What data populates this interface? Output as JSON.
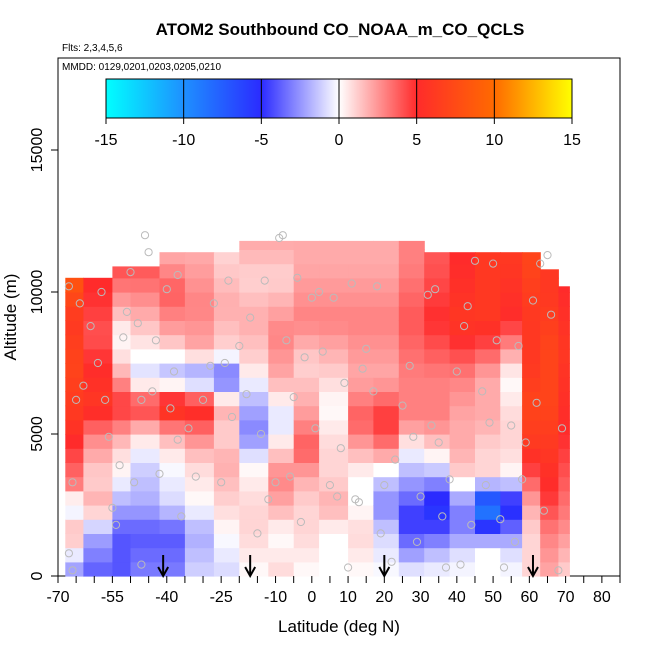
{
  "chart_data": {
    "type": "heatmap",
    "title": "ATOM2 Southbound CO_NOAA_m_CO_QCLS",
    "subtitle": "Flts: 2,3,4,5,6",
    "annotation": "MMDD: 0129,0201,0203,0205,0210",
    "xlabel": "Latitude (deg N)",
    "ylabel": "Altitude (m)",
    "xlim": [
      -70,
      85
    ],
    "ylim": [
      0,
      17500
    ],
    "x_ticks": [
      -70,
      -55,
      -40,
      -25,
      -10,
      0,
      10,
      20,
      30,
      40,
      50,
      60,
      70,
      80
    ],
    "x_minor_ticks": [
      -65,
      -60,
      -50,
      -45,
      -35,
      -30,
      -20,
      -15,
      -5,
      5,
      15,
      25,
      35,
      45,
      55,
      65,
      75,
      85
    ],
    "y_ticks": [
      0,
      5000,
      10000,
      15000
    ],
    "colorbar": {
      "range": [
        -15,
        15
      ],
      "ticks": [
        -15,
        -10,
        -5,
        0,
        5,
        10,
        15
      ],
      "colors": {
        "-15": "#00ffff",
        "-10": "#1e90ff",
        "-5": "#2b2bff",
        "0": "#ffffff",
        "5": "#ff2b2b",
        "10": "#ff6a00",
        "15": "#ffff00"
      }
    },
    "arrows_latitude": [
      -41,
      -17,
      20,
      61
    ],
    "profiles": [
      {
        "x0": -68,
        "x1": -63,
        "top": 10500,
        "values": [
          [
            0,
            -3
          ],
          [
            1500,
            2
          ],
          [
            2500,
            -1
          ],
          [
            3200,
            3
          ],
          [
            5500,
            6
          ],
          [
            7500,
            7
          ],
          [
            9000,
            6
          ],
          [
            10200,
            8
          ]
        ]
      },
      {
        "x0": -63,
        "x1": -55,
        "top": 10500,
        "values": [
          [
            0,
            -4
          ],
          [
            1500,
            -2
          ],
          [
            2500,
            2
          ],
          [
            3500,
            1
          ],
          [
            5000,
            3
          ],
          [
            6000,
            6
          ],
          [
            7500,
            5
          ],
          [
            8500,
            4
          ],
          [
            10000,
            5
          ]
        ]
      },
      {
        "x0": -55,
        "x1": -50,
        "top": 10900,
        "values": [
          [
            0,
            -4
          ],
          [
            1500,
            -4
          ],
          [
            2500,
            -2
          ],
          [
            3500,
            0
          ],
          [
            4500,
            1
          ],
          [
            6000,
            5
          ],
          [
            7500,
            1
          ],
          [
            8500,
            0
          ],
          [
            9500,
            2
          ],
          [
            10700,
            4
          ]
        ]
      },
      {
        "x0": -50,
        "x1": -42,
        "top": 10900,
        "values": [
          [
            0,
            -3
          ],
          [
            1500,
            -4
          ],
          [
            2500,
            -2
          ],
          [
            4000,
            -1
          ],
          [
            5000,
            1
          ],
          [
            6000,
            5
          ],
          [
            7000,
            -1
          ],
          [
            8500,
            1
          ],
          [
            10000,
            3
          ],
          [
            10800,
            4
          ]
        ]
      },
      {
        "x0": -42,
        "x1": -35,
        "top": 11400,
        "values": [
          [
            0,
            -3
          ],
          [
            1500,
            -4
          ],
          [
            2500,
            -1
          ],
          [
            4000,
            0
          ],
          [
            5000,
            2
          ],
          [
            6000,
            7
          ],
          [
            7000,
            -2
          ],
          [
            8500,
            2
          ],
          [
            10000,
            4
          ],
          [
            11300,
            2
          ]
        ]
      },
      {
        "x0": -35,
        "x1": -27,
        "top": 11400,
        "values": [
          [
            0,
            -1
          ],
          [
            1500,
            -2
          ],
          [
            2500,
            0
          ],
          [
            4000,
            1
          ],
          [
            5000,
            3
          ],
          [
            6000,
            6
          ],
          [
            7000,
            -3
          ],
          [
            8000,
            2
          ],
          [
            9500,
            3
          ],
          [
            11300,
            2
          ]
        ]
      },
      {
        "x0": -27,
        "x1": -20,
        "top": 11400,
        "values": [
          [
            0,
            -1
          ],
          [
            1500,
            0
          ],
          [
            2500,
            1
          ],
          [
            4000,
            2
          ],
          [
            5000,
            1
          ],
          [
            6000,
            2
          ],
          [
            7000,
            -4
          ],
          [
            8000,
            1
          ],
          [
            9500,
            2
          ],
          [
            11300,
            1
          ]
        ]
      },
      {
        "x0": -20,
        "x1": -12,
        "top": 11800,
        "values": [
          [
            0,
            0
          ],
          [
            1500,
            1
          ],
          [
            2500,
            1
          ],
          [
            4000,
            0
          ],
          [
            5000,
            -3
          ],
          [
            6000,
            -2
          ],
          [
            7500,
            1
          ],
          [
            9000,
            2
          ],
          [
            10500,
            1
          ],
          [
            11700,
            2
          ]
        ]
      },
      {
        "x0": -12,
        "x1": -5,
        "top": 11800,
        "values": [
          [
            0,
            1
          ],
          [
            1500,
            0
          ],
          [
            2500,
            2
          ],
          [
            3500,
            3
          ],
          [
            4500,
            1
          ],
          [
            5500,
            -1
          ],
          [
            7000,
            2
          ],
          [
            8500,
            3
          ],
          [
            10500,
            1
          ],
          [
            11700,
            2
          ]
        ]
      },
      {
        "x0": -5,
        "x1": 2,
        "top": 11800,
        "values": [
          [
            0,
            0
          ],
          [
            1500,
            1
          ],
          [
            2500,
            1
          ],
          [
            3500,
            2
          ],
          [
            4500,
            4
          ],
          [
            6000,
            2
          ],
          [
            7500,
            1
          ],
          [
            9000,
            3
          ],
          [
            11000,
            2
          ]
        ]
      },
      {
        "x0": 2,
        "x1": 10,
        "top": 11800,
        "values": [
          [
            0,
            0
          ],
          [
            1500,
            0
          ],
          [
            2500,
            2
          ],
          [
            3500,
            1
          ],
          [
            4500,
            1
          ],
          [
            6000,
            0
          ],
          [
            7000,
            1
          ],
          [
            9000,
            3
          ],
          [
            11000,
            2
          ]
        ]
      },
      {
        "x0": 10,
        "x1": 17,
        "top": 11800,
        "values": [
          [
            0,
            0
          ],
          [
            1500,
            1
          ],
          [
            2500,
            0
          ],
          [
            3500,
            0
          ],
          [
            4500,
            2
          ],
          [
            5500,
            4
          ],
          [
            7000,
            2
          ],
          [
            9000,
            3
          ],
          [
            11000,
            2
          ]
        ]
      },
      {
        "x0": 17,
        "x1": 24,
        "top": 11800,
        "values": [
          [
            0,
            0
          ],
          [
            1500,
            -1
          ],
          [
            2500,
            -3
          ],
          [
            3500,
            -1
          ],
          [
            4500,
            3
          ],
          [
            5500,
            5
          ],
          [
            7000,
            2
          ],
          [
            9000,
            3
          ],
          [
            11000,
            2
          ]
        ]
      },
      {
        "x0": 24,
        "x1": 31,
        "top": 11800,
        "values": [
          [
            0,
            0
          ],
          [
            1000,
            -3
          ],
          [
            2000,
            -5
          ],
          [
            3000,
            -3
          ],
          [
            4500,
            0
          ],
          [
            5500,
            3
          ],
          [
            7000,
            3
          ],
          [
            9000,
            4
          ],
          [
            11000,
            3
          ]
        ]
      },
      {
        "x0": 31,
        "x1": 38,
        "top": 11400,
        "values": [
          [
            0,
            0
          ],
          [
            1000,
            -2
          ],
          [
            1500,
            -4
          ],
          [
            2500,
            -6
          ],
          [
            3500,
            -2
          ],
          [
            4500,
            1
          ],
          [
            5500,
            3
          ],
          [
            7000,
            3
          ],
          [
            9000,
            5
          ],
          [
            11000,
            4
          ]
        ]
      },
      {
        "x0": 38,
        "x1": 45,
        "top": 11400,
        "values": [
          [
            0,
            0
          ],
          [
            1000,
            -1
          ],
          [
            1500,
            -3
          ],
          [
            2500,
            -3
          ],
          [
            3500,
            1
          ],
          [
            4500,
            2
          ],
          [
            5500,
            2
          ],
          [
            7000,
            3
          ],
          [
            9000,
            6
          ],
          [
            11000,
            5
          ]
        ]
      },
      {
        "x0": 45,
        "x1": 52,
        "top": 11400,
        "values": [
          [
            0,
            0
          ],
          [
            1000,
            0
          ],
          [
            1500,
            -4
          ],
          [
            2500,
            -10
          ],
          [
            3500,
            1
          ],
          [
            4500,
            1
          ],
          [
            5500,
            2
          ],
          [
            7000,
            2
          ],
          [
            9000,
            6
          ],
          [
            11000,
            6
          ]
        ]
      },
      {
        "x0": 52,
        "x1": 58,
        "top": 11400,
        "values": [
          [
            0,
            0
          ],
          [
            1000,
            -1
          ],
          [
            1500,
            -3
          ],
          [
            2500,
            -6
          ],
          [
            3500,
            0
          ],
          [
            4500,
            1
          ],
          [
            5500,
            1
          ],
          [
            7000,
            0
          ],
          [
            9000,
            5
          ],
          [
            11000,
            6
          ]
        ]
      },
      {
        "x0": 58,
        "x1": 63,
        "top": 11400,
        "values": [
          [
            0,
            1
          ],
          [
            1500,
            1
          ],
          [
            2500,
            2
          ],
          [
            3500,
            4
          ],
          [
            4500,
            6
          ],
          [
            6000,
            7
          ],
          [
            7500,
            6
          ],
          [
            9000,
            6
          ],
          [
            11000,
            7
          ]
        ]
      },
      {
        "x0": 63,
        "x1": 68,
        "top": 10800,
        "values": [
          [
            0,
            2
          ],
          [
            1500,
            3
          ],
          [
            3000,
            5
          ],
          [
            4500,
            6
          ],
          [
            6000,
            7
          ],
          [
            8000,
            7
          ],
          [
            10000,
            6
          ]
        ]
      },
      {
        "x0": 68,
        "x1": 71,
        "top": 10200,
        "values": [
          [
            0,
            1
          ],
          [
            2000,
            3
          ],
          [
            5000,
            5
          ],
          [
            8000,
            6
          ],
          [
            10000,
            5
          ]
        ]
      }
    ],
    "points": [
      [
        -66,
        3300
      ],
      [
        -67,
        800
      ],
      [
        -66,
        200
      ],
      [
        -67,
        10200
      ],
      [
        -65,
        6200
      ],
      [
        -64,
        9600
      ],
      [
        -63,
        6700
      ],
      [
        -61,
        8800
      ],
      [
        -59,
        7500
      ],
      [
        -58,
        10000
      ],
      [
        -57,
        6200
      ],
      [
        -56,
        4900
      ],
      [
        -55,
        2400
      ],
      [
        -54,
        1800
      ],
      [
        -53,
        3900
      ],
      [
        -52,
        8400
      ],
      [
        -51,
        9300
      ],
      [
        -50,
        10700
      ],
      [
        -49,
        3300
      ],
      [
        -48,
        8900
      ],
      [
        -47,
        6200
      ],
      [
        -47,
        400
      ],
      [
        -46,
        12000
      ],
      [
        -45,
        11400
      ],
      [
        -44,
        6500
      ],
      [
        -43,
        8300
      ],
      [
        -42,
        3600
      ],
      [
        -40,
        10100
      ],
      [
        -39,
        5900
      ],
      [
        -38,
        7200
      ],
      [
        -37,
        10600
      ],
      [
        -37,
        4800
      ],
      [
        -36,
        2100
      ],
      [
        -34,
        5200
      ],
      [
        -32,
        3500
      ],
      [
        -30,
        6200
      ],
      [
        -28,
        7400
      ],
      [
        -27,
        9600
      ],
      [
        -25,
        3300
      ],
      [
        -24,
        7500
      ],
      [
        -23,
        10400
      ],
      [
        -22,
        5600
      ],
      [
        -20,
        8100
      ],
      [
        -18,
        6400
      ],
      [
        -17,
        9100
      ],
      [
        -15,
        1500
      ],
      [
        -14,
        5000
      ],
      [
        -13,
        10400
      ],
      [
        -12,
        2700
      ],
      [
        -10,
        3300
      ],
      [
        -9,
        11900
      ],
      [
        -8,
        12000
      ],
      [
        -7,
        8300
      ],
      [
        -6,
        3500
      ],
      [
        -5,
        6300
      ],
      [
        -4,
        10500
      ],
      [
        -3,
        1900
      ],
      [
        -2,
        7700
      ],
      [
        0,
        9800
      ],
      [
        1,
        5200
      ],
      [
        2,
        10000
      ],
      [
        3,
        7900
      ],
      [
        5,
        3200
      ],
      [
        6,
        9800
      ],
      [
        7,
        2800
      ],
      [
        8,
        4500
      ],
      [
        9,
        6800
      ],
      [
        10,
        300
      ],
      [
        11,
        10300
      ],
      [
        12,
        2700
      ],
      [
        13,
        2600
      ],
      [
        14,
        7300
      ],
      [
        15,
        8000
      ],
      [
        17,
        6500
      ],
      [
        18,
        10200
      ],
      [
        19,
        1500
      ],
      [
        20,
        3200
      ],
      [
        22,
        500
      ],
      [
        23,
        4100
      ],
      [
        25,
        6000
      ],
      [
        27,
        7400
      ],
      [
        28,
        4900
      ],
      [
        29,
        1200
      ],
      [
        30,
        2800
      ],
      [
        32,
        9900
      ],
      [
        33,
        5300
      ],
      [
        34,
        10100
      ],
      [
        35,
        4700
      ],
      [
        36,
        2100
      ],
      [
        37,
        300
      ],
      [
        38,
        3400
      ],
      [
        40,
        7200
      ],
      [
        41,
        400
      ],
      [
        42,
        8800
      ],
      [
        43,
        9500
      ],
      [
        44,
        1800
      ],
      [
        45,
        11100
      ],
      [
        47,
        6500
      ],
      [
        48,
        3200
      ],
      [
        49,
        5400
      ],
      [
        50,
        11000
      ],
      [
        51,
        8300
      ],
      [
        52,
        2000
      ],
      [
        53,
        300
      ],
      [
        55,
        5300
      ],
      [
        56,
        1200
      ],
      [
        57,
        8100
      ],
      [
        58,
        3400
      ],
      [
        59,
        4700
      ],
      [
        61,
        9700
      ],
      [
        62,
        6100
      ],
      [
        63,
        11000
      ],
      [
        64,
        2300
      ],
      [
        65,
        11300
      ],
      [
        66,
        9200
      ],
      [
        68,
        200
      ],
      [
        69,
        5200
      ]
    ]
  }
}
